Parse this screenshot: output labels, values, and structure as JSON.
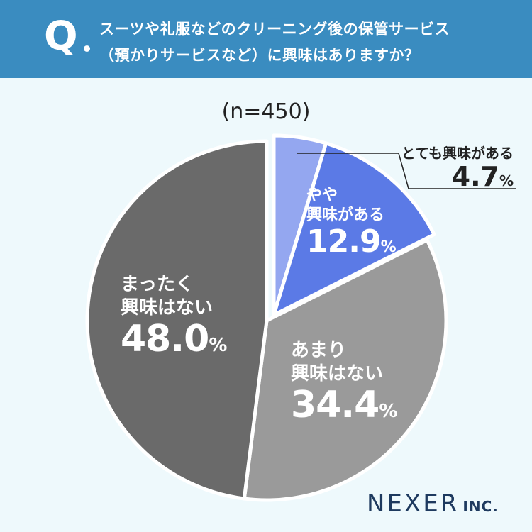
{
  "header": {
    "q_mark": "Q",
    "question_line1": "スーツや礼服などのクリーニング後の保管サービス",
    "question_line2": "（預かりサービスなど）に興味はありますか？"
  },
  "sample_size": "(n=450)",
  "logo": {
    "main": "NEXER",
    "sub": "INC."
  },
  "chart_data": {
    "type": "pie",
    "unit": "%",
    "slices": [
      {
        "label_lines": [
          "とても興味がある"
        ],
        "value": 4.7,
        "value_text": "4.7",
        "color": "#94a7f0"
      },
      {
        "label_lines": [
          "やや",
          "興味がある"
        ],
        "value": 12.9,
        "value_text": "12.9",
        "color": "#5b7ae6"
      },
      {
        "label_lines": [
          "あまり",
          "興味はない"
        ],
        "value": 34.4,
        "value_text": "34.4",
        "color": "#9a9a9a"
      },
      {
        "label_lines": [
          "まったく",
          "興味はない"
        ],
        "value": 48.0,
        "value_text": "48.0",
        "color": "#6a6a6a"
      }
    ],
    "start": "12 o'clock, clockwise",
    "legend": "none (labels placed on and beside the slices)"
  }
}
